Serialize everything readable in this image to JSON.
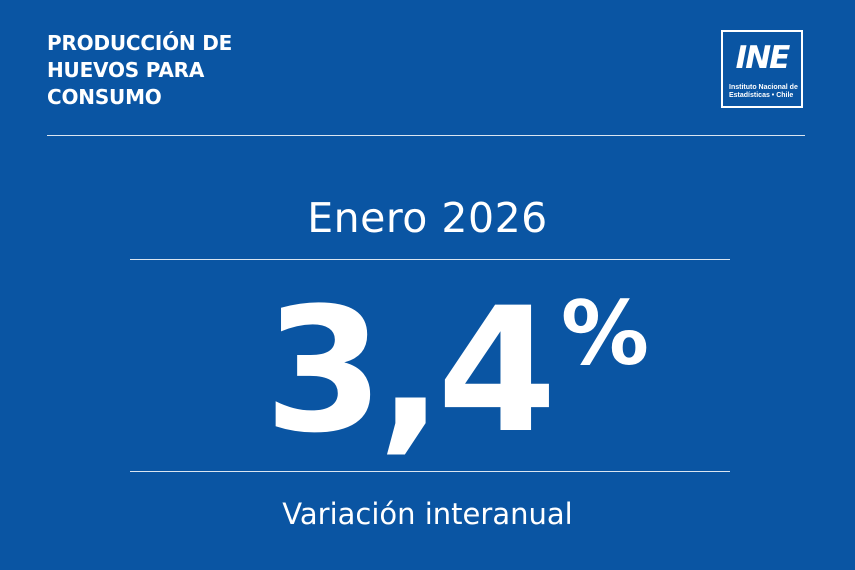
{
  "header": {
    "title_lines": [
      "PRODUCCIÓN DE",
      "HUEVOS PARA",
      "CONSUMO"
    ]
  },
  "logo": {
    "mark": "INE",
    "subtitle_lines": [
      "Instituto Nacional de",
      "Estadísticas • Chile"
    ]
  },
  "period": "Enero 2026",
  "indicator": {
    "value": "3,4",
    "unit": "%"
  },
  "caption": "Variación interanual",
  "colors": {
    "background": "#0a55a3",
    "text": "#ffffff"
  }
}
